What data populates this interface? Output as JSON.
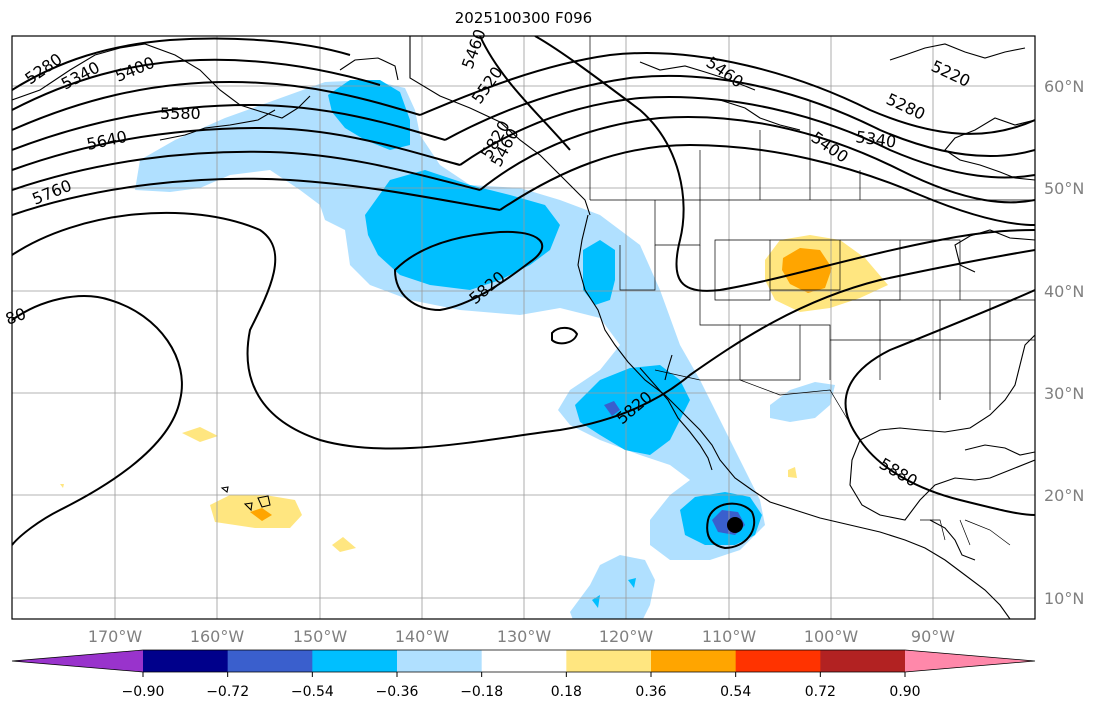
{
  "title": "2025100300 F096",
  "latitude_labels": [
    "60°N",
    "50°N",
    "40°N",
    "30°N",
    "20°N",
    "10°N"
  ],
  "longitude_labels": [
    "170°W",
    "160°W",
    "150°W",
    "140°W",
    "130°W",
    "120°W",
    "110°W",
    "100°W",
    "90°W"
  ],
  "contour_labels": [
    "5280",
    "5340",
    "5400",
    "5460",
    "5520",
    "5580",
    "5640",
    "5760",
    "5820",
    "5820",
    "5820",
    "5880",
    "5460",
    "5400",
    "5340",
    "5280",
    "5220",
    "5460",
    "80"
  ],
  "colorbar": {
    "tick_labels": [
      "−0.90",
      "−0.72",
      "−0.54",
      "−0.36",
      "−0.18",
      "0.18",
      "0.36",
      "0.54",
      "0.72",
      "0.90"
    ],
    "colors": [
      "#9933cc",
      "#00008b",
      "#3a5fcd",
      "#00bfff",
      "#b0e0ff",
      "#ffffff",
      "#ffe680",
      "#ffa500",
      "#ff3300",
      "#b22222",
      "#ff88aa"
    ]
  },
  "shading_colors": {
    "light_blue": "#b0e0ff",
    "blue": "#00bfff",
    "dark_blue": "#3a5fcd",
    "light_yellow": "#ffe680",
    "orange": "#ffa500"
  }
}
